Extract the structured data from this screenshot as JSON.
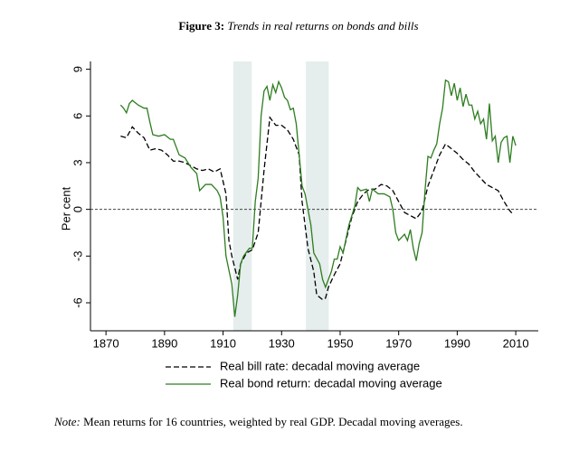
{
  "chart_data": {
    "type": "line",
    "title_label": "Figure 3:",
    "title": "Trends in real returns on bonds and bills",
    "ylabel": "Per cent",
    "note_label": "Note:",
    "note": "Mean returns for 16 countries, weighted by real GDP. Decadal moving averages.",
    "xlim": [
      1864.7,
      2017.7
    ],
    "ylim": [
      -7.8,
      9.5
    ],
    "xticks": [
      1870,
      1890,
      1910,
      1930,
      1950,
      1970,
      1990,
      2010
    ],
    "yticks": [
      -6,
      -3,
      0,
      3,
      6,
      9
    ],
    "reference_line": 0,
    "shaded_ranges": [
      [
        1913.5,
        1919.8
      ],
      [
        1938.3,
        1946.1
      ]
    ],
    "shade_color": "#e5eded",
    "series": [
      {
        "name": "Real bill rate: decadal moving average",
        "color": "#000000",
        "dashed": true,
        "x": [
          1875,
          1877,
          1879,
          1881,
          1883,
          1885,
          1887,
          1889,
          1891,
          1893,
          1895,
          1897,
          1899,
          1901,
          1903,
          1905,
          1907,
          1909,
          1911,
          1912,
          1913,
          1915,
          1916,
          1918,
          1920,
          1922,
          1924,
          1926,
          1928,
          1930,
          1932,
          1934,
          1936,
          1937,
          1939,
          1941,
          1942,
          1944,
          1945,
          1946,
          1948,
          1950,
          1952,
          1954,
          1956,
          1958,
          1960,
          1962,
          1964,
          1966,
          1968,
          1970,
          1972,
          1974,
          1976,
          1978,
          1980,
          1982,
          1984,
          1986,
          1988,
          1990,
          1992,
          1994,
          1996,
          1998,
          2000,
          2002,
          2004,
          2006,
          2008,
          2009
        ],
        "values": [
          4.7,
          4.6,
          5.3,
          4.9,
          4.6,
          3.8,
          3.9,
          3.8,
          3.5,
          3.1,
          3.1,
          3.0,
          2.8,
          2.6,
          2.5,
          2.6,
          2.4,
          2.6,
          1.0,
          -2.0,
          -3.0,
          -4.5,
          -3.5,
          -2.8,
          -2.6,
          -1.5,
          2.5,
          5.9,
          5.4,
          5.4,
          5.1,
          4.5,
          3.5,
          0.5,
          -2.5,
          -4.0,
          -5.5,
          -5.8,
          -5.7,
          -5.0,
          -4.2,
          -3.5,
          -2.0,
          -0.5,
          0.5,
          1.0,
          1.3,
          1.3,
          1.6,
          1.5,
          1.2,
          0.5,
          -0.2,
          -0.4,
          -0.6,
          -0.1,
          1.5,
          2.5,
          3.5,
          4.2,
          3.9,
          3.6,
          3.2,
          2.9,
          2.4,
          2.0,
          1.6,
          1.4,
          1.2,
          0.5,
          -0.1,
          -0.3
        ]
      },
      {
        "name": "Real bond return: decadal moving average",
        "color": "#2e7d20",
        "dashed": false,
        "x": [
          1875,
          1876,
          1877,
          1878,
          1879,
          1881,
          1883,
          1884,
          1885,
          1886,
          1888,
          1890,
          1892,
          1893,
          1895,
          1897,
          1899,
          1901,
          1902,
          1904,
          1906,
          1908,
          1909,
          1910,
          1911,
          1913,
          1914,
          1915,
          1916,
          1917,
          1919,
          1920,
          1921,
          1922,
          1923,
          1924,
          1925,
          1926,
          1927,
          1928,
          1929,
          1930,
          1931,
          1932,
          1933,
          1934,
          1935,
          1936,
          1937,
          1938,
          1940,
          1941,
          1943,
          1944,
          1945,
          1946,
          1947,
          1948,
          1949,
          1950,
          1951,
          1953,
          1955,
          1956,
          1957,
          1959,
          1960,
          1961,
          1963,
          1965,
          1967,
          1968,
          1969,
          1970,
          1971,
          1972,
          1973,
          1974,
          1975,
          1976,
          1977,
          1978,
          1979,
          1980,
          1981,
          1982,
          1983,
          1984,
          1985,
          1986,
          1987,
          1988,
          1989,
          1990,
          1991,
          1992,
          1993,
          1994,
          1995,
          1996,
          1997,
          1998,
          1999,
          2000,
          2001,
          2002,
          2003,
          2004,
          2005,
          2006,
          2007,
          2008,
          2009,
          2010
        ],
        "values": [
          6.7,
          6.5,
          6.2,
          6.8,
          7.0,
          6.7,
          6.5,
          6.5,
          5.6,
          4.8,
          4.7,
          4.8,
          4.5,
          4.5,
          3.5,
          3.3,
          2.7,
          2.3,
          1.2,
          1.6,
          1.6,
          1.2,
          0.8,
          -0.5,
          -3.0,
          -4.8,
          -6.9,
          -5.5,
          -3.5,
          -3.0,
          -2.5,
          -2.5,
          0.5,
          2.0,
          6.0,
          7.6,
          7.9,
          7.0,
          8.0,
          7.5,
          8.2,
          7.8,
          7.2,
          7.0,
          6.4,
          6.5,
          5.5,
          3.5,
          1.5,
          1.0,
          -1.0,
          -2.8,
          -3.5,
          -4.5,
          -5.0,
          -4.5,
          -4.0,
          -3.2,
          -3.2,
          -2.4,
          -2.8,
          -1.0,
          0.2,
          1.4,
          1.2,
          1.3,
          0.5,
          1.3,
          1.0,
          1.0,
          0.8,
          0.0,
          -1.5,
          -2.0,
          -1.8,
          -1.6,
          -2.0,
          -1.3,
          -2.5,
          -3.3,
          -2.2,
          -1.5,
          1.2,
          3.4,
          3.3,
          3.8,
          4.2,
          5.5,
          6.5,
          8.3,
          8.2,
          7.3,
          8.1,
          7.0,
          7.8,
          6.6,
          7.4,
          6.7,
          6.7,
          5.8,
          6.3,
          5.5,
          5.8,
          4.5,
          6.8,
          4.4,
          4.7,
          3.0,
          4.3,
          4.6,
          4.7,
          3.0,
          4.7,
          4.1
        ]
      }
    ]
  }
}
